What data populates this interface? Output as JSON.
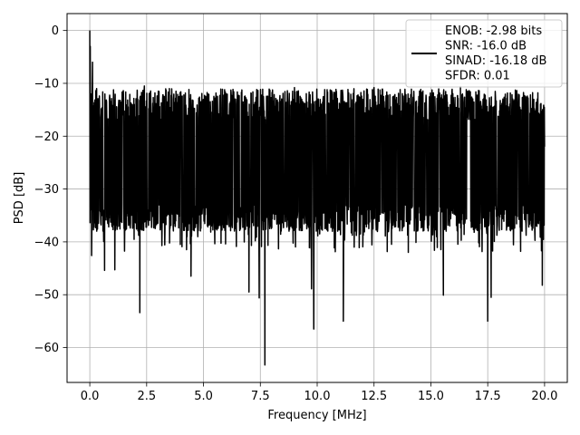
{
  "chart_data": {
    "type": "line",
    "xlabel": "Frequency [MHz]",
    "ylabel": "PSD [dB]",
    "xlim": [
      -1.0,
      21.0
    ],
    "ylim": [
      -66.6,
      3.2
    ],
    "xticks": [
      0.0,
      2.5,
      5.0,
      7.5,
      10.0,
      12.5,
      15.0,
      17.5,
      20.0
    ],
    "xtick_labels": [
      "0.0",
      "2.5",
      "5.0",
      "7.5",
      "10.0",
      "12.5",
      "15.0",
      "17.5",
      "20.0"
    ],
    "yticks": [
      0,
      -10,
      -20,
      -30,
      -40,
      -50,
      -60
    ],
    "ytick_labels": [
      "0",
      "−10",
      "−20",
      "−30",
      "−40",
      "−50",
      "−60"
    ],
    "grid": true,
    "legend_position": "top-right",
    "legend_lines": [
      "ENOB: -2.98 bits",
      "SNR: -16.0 dB",
      "SINAD: -16.18 dB",
      "SFDR: 0.01"
    ],
    "series": [
      {
        "color": "#000000",
        "x_range": [
          0.0,
          20.0
        ],
        "noise": {
          "typical_upper": -17,
          "typical_lower": -33,
          "median": -24
        },
        "points": [
          [
            0.0,
            0.0
          ],
          [
            0.02,
            -3.0
          ],
          [
            0.05,
            -12.0
          ],
          [
            0.08,
            -42.6
          ],
          [
            0.12,
            -6.0
          ],
          [
            0.3,
            -11.0
          ],
          [
            0.65,
            -45.4
          ],
          [
            1.1,
            -45.3
          ],
          [
            1.3,
            -37.0
          ],
          [
            2.2,
            -53.4
          ],
          [
            2.4,
            -10.5
          ],
          [
            3.5,
            -11.0
          ],
          [
            4.45,
            -46.5
          ],
          [
            6.0,
            -12.0
          ],
          [
            7.0,
            -49.5
          ],
          [
            7.45,
            -50.6
          ],
          [
            7.7,
            -63.3
          ],
          [
            9.0,
            -10.8
          ],
          [
            9.75,
            -48.9
          ],
          [
            9.85,
            -56.5
          ],
          [
            11.15,
            -55.0
          ],
          [
            12.5,
            -10.8
          ],
          [
            15.0,
            -14.0
          ],
          [
            15.55,
            -50.1
          ],
          [
            16.3,
            -10.6
          ],
          [
            17.5,
            -55.0
          ],
          [
            17.65,
            -50.5
          ],
          [
            19.9,
            -48.2
          ],
          [
            20.0,
            -22.0
          ]
        ]
      }
    ]
  }
}
